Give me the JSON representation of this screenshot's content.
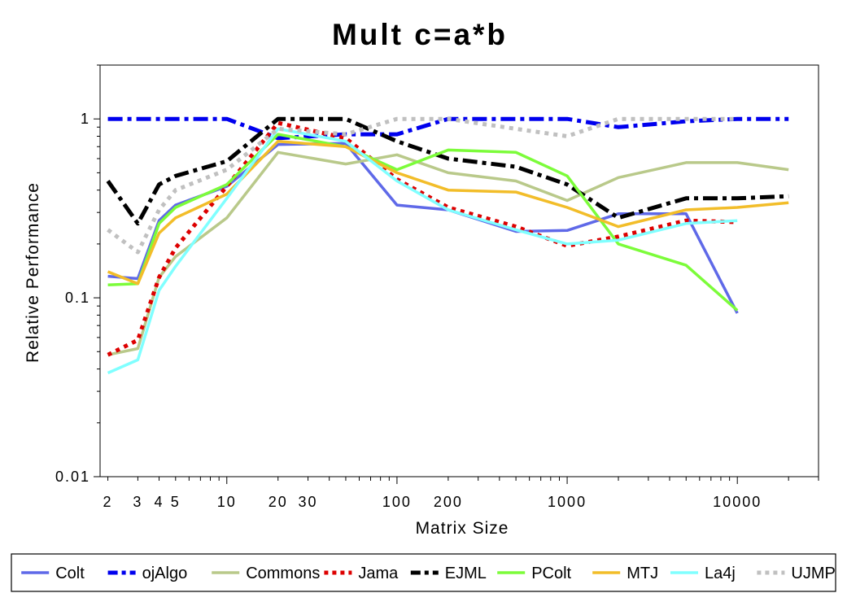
{
  "chart_data": {
    "type": "line",
    "title": "Mult c=a*b",
    "xlabel": "Matrix Size",
    "ylabel": "Relative Performance",
    "xscale": "log",
    "yscale": "log",
    "xlim": [
      1.8,
      30000
    ],
    "ylim": [
      0.01,
      2
    ],
    "x_ticks": [
      {
        "value": 2,
        "label": "2"
      },
      {
        "value": 3,
        "label": "3"
      },
      {
        "value": 4,
        "label": "4"
      },
      {
        "value": 5,
        "label": "5"
      },
      {
        "value": 10,
        "label": "10"
      },
      {
        "value": 20,
        "label": "20"
      },
      {
        "value": 30,
        "label": "30"
      },
      {
        "value": 100,
        "label": "100"
      },
      {
        "value": 200,
        "label": "200"
      },
      {
        "value": 1000,
        "label": "1000"
      },
      {
        "value": 10000,
        "label": "10000"
      }
    ],
    "y_ticks": [
      {
        "value": 0.01,
        "label": "0.01"
      },
      {
        "value": 0.1,
        "label": "0.1"
      },
      {
        "value": 1,
        "label": "1"
      }
    ],
    "grid": false,
    "legend": "bottom",
    "series": [
      {
        "name": "Colt",
        "color": "#5f69e8",
        "dash": "solid",
        "x": [
          2,
          3,
          4,
          5,
          10,
          20,
          50,
          100,
          200,
          500,
          1000,
          2000,
          5000,
          10000
        ],
        "y": [
          0.132,
          0.128,
          0.27,
          0.33,
          0.42,
          0.72,
          0.73,
          0.33,
          0.31,
          0.235,
          0.238,
          0.295,
          0.295,
          0.082
        ]
      },
      {
        "name": "ojAlgo",
        "color": "#0000ee",
        "dash": "dashdot",
        "x": [
          2,
          3,
          4,
          5,
          10,
          20,
          50,
          100,
          200,
          500,
          1000,
          2000,
          5000,
          10000,
          20000
        ],
        "y": [
          1.0,
          1.0,
          1.0,
          1.0,
          1.0,
          0.78,
          0.82,
          0.82,
          1.0,
          1.0,
          1.0,
          0.9,
          0.97,
          1.0,
          1.0
        ]
      },
      {
        "name": "Commons",
        "color": "#b9c98a",
        "dash": "solid",
        "x": [
          2,
          3,
          4,
          5,
          10,
          20,
          50,
          100,
          200,
          500,
          1000,
          2000,
          5000,
          10000,
          20000
        ],
        "y": [
          0.048,
          0.052,
          0.13,
          0.17,
          0.28,
          0.65,
          0.56,
          0.63,
          0.5,
          0.45,
          0.35,
          0.47,
          0.57,
          0.57,
          0.52
        ]
      },
      {
        "name": "Jama",
        "color": "#dd0000",
        "dash": "dot",
        "x": [
          2,
          3,
          4,
          5,
          10,
          20,
          50,
          100,
          200,
          500,
          1000,
          2000,
          5000,
          10000
        ],
        "y": [
          0.048,
          0.058,
          0.13,
          0.19,
          0.42,
          0.95,
          0.78,
          0.46,
          0.32,
          0.25,
          0.195,
          0.22,
          0.27,
          0.265
        ]
      },
      {
        "name": "EJML",
        "color": "#000000",
        "dash": "dashdot",
        "x": [
          2,
          3,
          4,
          5,
          10,
          20,
          50,
          100,
          200,
          500,
          1000,
          2000,
          5000,
          10000,
          20000
        ],
        "y": [
          0.45,
          0.26,
          0.43,
          0.48,
          0.58,
          1.0,
          1.0,
          0.75,
          0.6,
          0.54,
          0.43,
          0.28,
          0.36,
          0.36,
          0.37
        ]
      },
      {
        "name": "PColt",
        "color": "#7cfc3a",
        "dash": "solid",
        "x": [
          2,
          3,
          4,
          5,
          10,
          20,
          50,
          100,
          200,
          500,
          1000,
          2000,
          5000,
          10000
        ],
        "y": [
          0.118,
          0.12,
          0.26,
          0.32,
          0.43,
          0.82,
          0.7,
          0.52,
          0.67,
          0.65,
          0.48,
          0.2,
          0.152,
          0.085
        ]
      },
      {
        "name": "MTJ",
        "color": "#f2bd29",
        "dash": "solid",
        "x": [
          2,
          3,
          4,
          5,
          10,
          20,
          50,
          100,
          200,
          500,
          1000,
          2000,
          5000,
          10000,
          20000
        ],
        "y": [
          0.14,
          0.12,
          0.23,
          0.28,
          0.38,
          0.75,
          0.7,
          0.5,
          0.4,
          0.39,
          0.32,
          0.25,
          0.31,
          0.32,
          0.34
        ]
      },
      {
        "name": "La4j",
        "color": "#80ffff",
        "dash": "solid",
        "x": [
          2,
          3,
          4,
          5,
          10,
          20,
          50,
          100,
          200,
          500,
          1000,
          2000,
          5000,
          10000
        ],
        "y": [
          0.038,
          0.045,
          0.11,
          0.15,
          0.36,
          0.88,
          0.75,
          0.45,
          0.31,
          0.24,
          0.2,
          0.21,
          0.26,
          0.27
        ]
      },
      {
        "name": "UJMP",
        "color": "#c0c0c0",
        "dash": "dot",
        "x": [
          2,
          3,
          4,
          5,
          10,
          20,
          50,
          100,
          200,
          500,
          1000,
          2000,
          5000,
          10000
        ],
        "y": [
          0.24,
          0.18,
          0.31,
          0.4,
          0.52,
          0.88,
          0.82,
          1.0,
          1.0,
          0.88,
          0.8,
          1.0,
          1.0,
          1.0
        ]
      }
    ]
  }
}
